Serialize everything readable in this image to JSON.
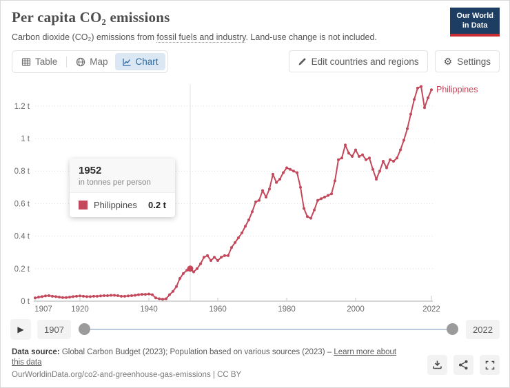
{
  "header": {
    "title": "Per capita CO₂ emissions",
    "subtitle_pre": "Carbon dioxide (CO₂) emissions from ",
    "subtitle_link": "fossil fuels and industry",
    "subtitle_post": ". Land-use change is not included.",
    "logo_line1": "Our World",
    "logo_line2": "in Data"
  },
  "tabs": {
    "table": "Table",
    "map": "Map",
    "chart": "Chart",
    "active": "Chart"
  },
  "toolbar": {
    "edit_label": "Edit countries and regions",
    "settings_label": "Settings"
  },
  "tooltip": {
    "year": "1952",
    "unit": "in tonnes per person",
    "entity": "Philippines",
    "value": "0.2 t"
  },
  "timeline": {
    "start_year": "1907",
    "end_year": "2022"
  },
  "footer": {
    "source_label": "Data source:",
    "source_text": " Global Carbon Budget (2023); Population based on various sources (2023) – ",
    "source_link": "Learn more about this data",
    "url_text": "OurWorldinData.org/co2-and-greenhouse-gas-emissions | CC BY"
  },
  "colors": {
    "accent": "#c4485c",
    "active_tab_bg": "#dbe8f4",
    "active_tab_text": "#2d6ba6",
    "logo_navy": "#1d3d63",
    "logo_red": "#c82d32"
  },
  "chart_data": {
    "type": "line",
    "title": "Per capita CO₂ emissions",
    "ylabel": "tonnes per person",
    "xlim": [
      1907,
      2022
    ],
    "ylim": [
      0,
      1.35
    ],
    "grid": "dotted-horizontal",
    "legend_position": "end-of-line-label",
    "xticks": [
      1907,
      1920,
      1940,
      1960,
      1980,
      2000,
      2022
    ],
    "yticks": [
      0,
      0.2,
      0.4,
      0.6,
      0.8,
      1.0,
      1.2
    ],
    "ytick_labels": [
      "0 t",
      "0.2 t",
      "0.4 t",
      "0.6 t",
      "0.8 t",
      "1 t",
      "1.2 t"
    ],
    "highlight": {
      "year": 1952,
      "value": 0.2,
      "label": "0.2 t"
    },
    "series": [
      {
        "name": "Philippines",
        "color": "#c4485c",
        "x": [
          1907,
          1908,
          1909,
          1910,
          1911,
          1912,
          1913,
          1914,
          1915,
          1916,
          1917,
          1918,
          1919,
          1920,
          1921,
          1922,
          1923,
          1924,
          1925,
          1926,
          1927,
          1928,
          1929,
          1930,
          1931,
          1932,
          1933,
          1934,
          1935,
          1936,
          1937,
          1938,
          1939,
          1940,
          1941,
          1942,
          1943,
          1944,
          1945,
          1946,
          1947,
          1948,
          1949,
          1950,
          1951,
          1952,
          1953,
          1954,
          1955,
          1956,
          1957,
          1958,
          1959,
          1960,
          1961,
          1962,
          1963,
          1964,
          1965,
          1966,
          1967,
          1968,
          1969,
          1970,
          1971,
          1972,
          1973,
          1974,
          1975,
          1976,
          1977,
          1978,
          1979,
          1980,
          1981,
          1982,
          1983,
          1984,
          1985,
          1986,
          1987,
          1988,
          1989,
          1990,
          1991,
          1992,
          1993,
          1994,
          1995,
          1996,
          1997,
          1998,
          1999,
          2000,
          2001,
          2002,
          2003,
          2004,
          2005,
          2006,
          2007,
          2008,
          2009,
          2010,
          2011,
          2012,
          2013,
          2014,
          2015,
          2016,
          2017,
          2018,
          2019,
          2020,
          2021,
          2022
        ],
        "values": [
          0.02,
          0.025,
          0.028,
          0.032,
          0.034,
          0.03,
          0.028,
          0.025,
          0.022,
          0.022,
          0.025,
          0.028,
          0.03,
          0.032,
          0.03,
          0.028,
          0.028,
          0.03,
          0.03,
          0.032,
          0.034,
          0.034,
          0.036,
          0.036,
          0.034,
          0.03,
          0.03,
          0.032,
          0.034,
          0.036,
          0.04,
          0.042,
          0.042,
          0.044,
          0.04,
          0.02,
          0.015,
          0.012,
          0.015,
          0.04,
          0.06,
          0.09,
          0.14,
          0.17,
          0.19,
          0.2,
          0.18,
          0.2,
          0.23,
          0.27,
          0.28,
          0.25,
          0.27,
          0.25,
          0.27,
          0.28,
          0.28,
          0.33,
          0.36,
          0.39,
          0.42,
          0.46,
          0.5,
          0.55,
          0.61,
          0.62,
          0.68,
          0.64,
          0.69,
          0.78,
          0.73,
          0.75,
          0.79,
          0.82,
          0.81,
          0.8,
          0.79,
          0.7,
          0.57,
          0.52,
          0.51,
          0.56,
          0.62,
          0.63,
          0.64,
          0.65,
          0.66,
          0.74,
          0.87,
          0.88,
          0.96,
          0.91,
          0.89,
          0.93,
          0.89,
          0.9,
          0.87,
          0.88,
          0.81,
          0.75,
          0.8,
          0.86,
          0.82,
          0.87,
          0.86,
          0.88,
          0.93,
          0.99,
          1.06,
          1.15,
          1.24,
          1.31,
          1.32,
          1.19,
          1.25,
          1.3
        ]
      }
    ]
  }
}
